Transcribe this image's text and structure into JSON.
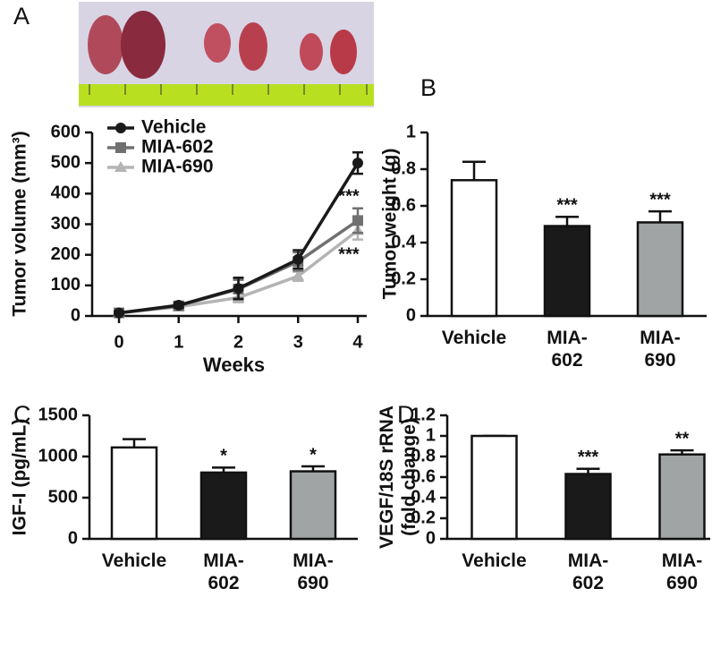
{
  "chart_data": [
    {
      "type": "line",
      "panel": "A",
      "xlabel": "Weeks",
      "ylabel": "Tumor volume (mm³)",
      "x": [
        0,
        1,
        2,
        3,
        4
      ],
      "series": [
        {
          "name": "Vehicle",
          "color": "#1a1a1a",
          "marker": "circle",
          "values": [
            10,
            35,
            90,
            185,
            500
          ],
          "errors": [
            3,
            8,
            35,
            30,
            35
          ]
        },
        {
          "name": "MIA-602",
          "color": "#707070",
          "marker": "square",
          "values": [
            10,
            33,
            88,
            178,
            312
          ],
          "errors": [
            3,
            8,
            30,
            30,
            40
          ]
        },
        {
          "name": "MIA-690",
          "color": "#b4b4b4",
          "marker": "triangle",
          "values": [
            10,
            30,
            60,
            130,
            280
          ],
          "errors": [
            3,
            6,
            15,
            15,
            30
          ]
        }
      ],
      "annotations": [
        "***",
        "***"
      ],
      "xlim": [
        -0.45,
        4.15
      ],
      "xticks": [
        0,
        1,
        2,
        3,
        4
      ],
      "ylim": [
        0,
        600
      ],
      "yticks": [
        0,
        100,
        200,
        300,
        400,
        500,
        600
      ]
    },
    {
      "type": "bar",
      "panel": "B",
      "ylabel": "Tumor weight (g)",
      "categories": [
        "Vehicle",
        "MIA-\n602",
        "MIA-\n690"
      ],
      "values": [
        0.74,
        0.49,
        0.51
      ],
      "errors": [
        0.1,
        0.05,
        0.06
      ],
      "colors": [
        "#ffffff",
        "#1a1a1a",
        "#a0a4a4"
      ],
      "annotations": [
        "***",
        "***"
      ],
      "ylim": [
        0,
        1
      ],
      "yticks": [
        0,
        0.2,
        0.4,
        0.6,
        0.8,
        1
      ]
    },
    {
      "type": "bar",
      "panel": "C",
      "ylabel": "IGF-I (pg/mL)",
      "categories": [
        "Vehicle",
        "MIA-\n602",
        "MIA-\n690"
      ],
      "values": [
        1110,
        805,
        820
      ],
      "errors": [
        100,
        60,
        60
      ],
      "colors": [
        "#ffffff",
        "#1a1a1a",
        "#a0a4a4"
      ],
      "annotations": [
        "*",
        "*"
      ],
      "ylim": [
        0,
        1500
      ],
      "yticks": [
        0,
        500,
        1000,
        1500
      ]
    },
    {
      "type": "bar",
      "panel": "D",
      "ylabel": "VEGF/18S rRNA\n(fold change)",
      "categories": [
        "Vehicle",
        "MIA-\n602",
        "MIA-\n690"
      ],
      "values": [
        1,
        0.63,
        0.82
      ],
      "errors": [
        0,
        0.05,
        0.04
      ],
      "colors": [
        "#ffffff",
        "#1a1a1a",
        "#a0a4a4"
      ],
      "annotations": [
        "***",
        "**"
      ],
      "ylim": [
        0,
        1.2
      ],
      "yticks": [
        0,
        0.2,
        0.4,
        0.6,
        0.8,
        1,
        1.2
      ]
    }
  ]
}
